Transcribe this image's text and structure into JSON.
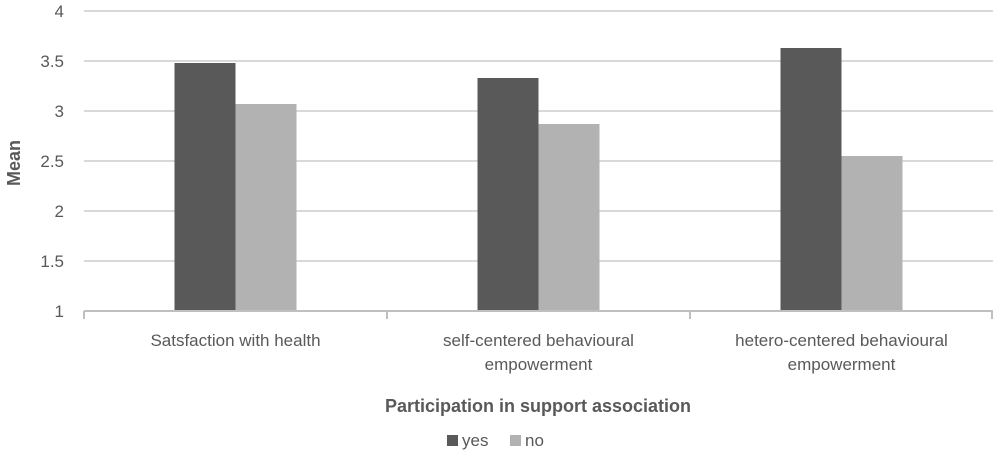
{
  "chart_data": {
    "type": "bar",
    "categories": [
      [
        "Satsfaction with health"
      ],
      [
        "self-centered behavioural",
        "empowerment"
      ],
      [
        "hetero-centered behavioural",
        "empowerment"
      ]
    ],
    "series": [
      {
        "name": "yes",
        "color": "#595959",
        "values": [
          3.48,
          3.33,
          3.63
        ]
      },
      {
        "name": "no",
        "color": "#b2b2b2",
        "values": [
          3.07,
          2.87,
          2.55
        ]
      }
    ],
    "ylim": [
      1,
      4
    ],
    "yticks": [
      "1",
      "1.5",
      "2",
      "2.5",
      "3",
      "3.5",
      "4"
    ],
    "ylabel": "Mean",
    "xlabel": "Participation in support association",
    "grid": true,
    "legend": "bottom"
  }
}
